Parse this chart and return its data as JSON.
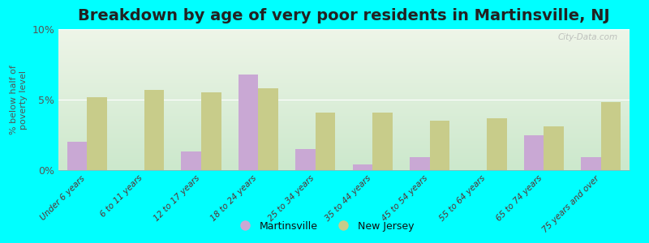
{
  "title": "Breakdown by age of very poor residents in Martinsville, NJ",
  "ylabel": "% below half of\npoverty level",
  "categories": [
    "Under 6 years",
    "6 to 11 years",
    "12 to 17 years",
    "18 to 24 years",
    "25 to 34 years",
    "35 to 44 years",
    "45 to 54 years",
    "55 to 64 years",
    "65 to 74 years",
    "75 years and over"
  ],
  "martinsville": [
    2.0,
    0.0,
    1.3,
    6.8,
    1.5,
    0.4,
    0.9,
    0.0,
    2.5,
    0.9
  ],
  "new_jersey": [
    5.2,
    5.7,
    5.5,
    5.8,
    4.1,
    4.1,
    3.5,
    3.7,
    3.1,
    4.8
  ],
  "martinsville_color": "#c9a8d4",
  "new_jersey_color": "#c8cc8a",
  "background_color": "#00ffff",
  "plot_bg_top": "#eef5e8",
  "plot_bg_bottom": "#cce8cc",
  "ylim": [
    0,
    10
  ],
  "yticks": [
    0,
    5,
    10
  ],
  "ytick_labels": [
    "0%",
    "5%",
    "10%"
  ],
  "bar_width": 0.35,
  "title_fontsize": 14,
  "watermark": "City-Data.com",
  "xlabel_color": "#5a3030",
  "ylabel_color": "#555555"
}
